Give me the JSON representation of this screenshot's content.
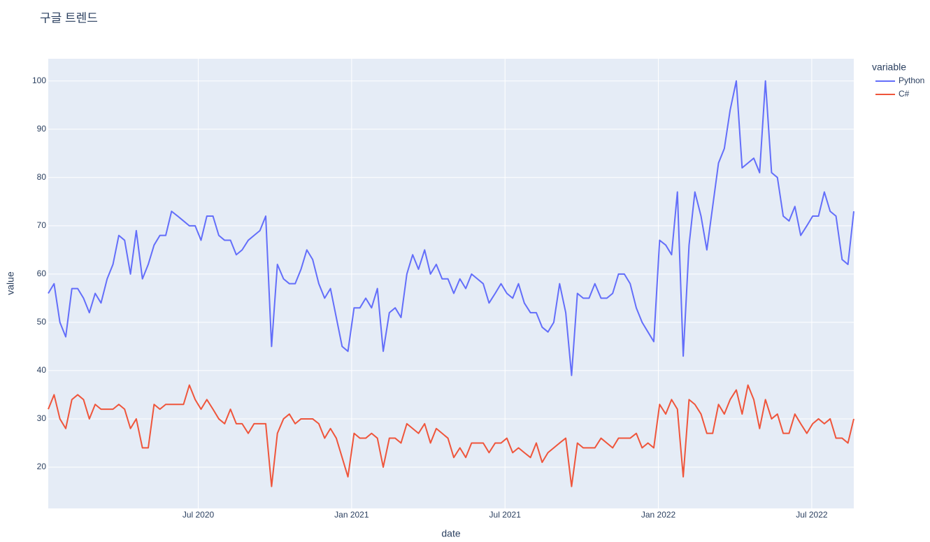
{
  "chart_data": {
    "type": "line",
    "title": "구글 트렌드",
    "xlabel": "date",
    "ylabel": "value",
    "legend_title": "variable",
    "legend": "right",
    "grid": true,
    "background": "#e5ecf6",
    "x": [
      2020.011,
      2020.03,
      2020.049,
      2020.068,
      2020.088,
      2020.107,
      2020.126,
      2020.145,
      2020.164,
      2020.183,
      2020.203,
      2020.222,
      2020.241,
      2020.26,
      2020.279,
      2020.298,
      2020.318,
      2020.337,
      2020.356,
      2020.375,
      2020.394,
      2020.413,
      2020.433,
      2020.452,
      2020.471,
      2020.49,
      2020.509,
      2020.528,
      2020.548,
      2020.567,
      2020.586,
      2020.605,
      2020.624,
      2020.643,
      2020.663,
      2020.682,
      2020.701,
      2020.72,
      2020.739,
      2020.758,
      2020.778,
      2020.797,
      2020.816,
      2020.835,
      2020.854,
      2020.873,
      2020.893,
      2020.912,
      2020.931,
      2020.95,
      2020.969,
      2020.988,
      2021.008,
      2021.027,
      2021.046,
      2021.065,
      2021.084,
      2021.103,
      2021.123,
      2021.142,
      2021.161,
      2021.18,
      2021.199,
      2021.218,
      2021.238,
      2021.257,
      2021.276,
      2021.295,
      2021.314,
      2021.333,
      2021.353,
      2021.372,
      2021.391,
      2021.41,
      2021.429,
      2021.448,
      2021.468,
      2021.487,
      2021.506,
      2021.525,
      2021.544,
      2021.563,
      2021.583,
      2021.602,
      2021.621,
      2021.64,
      2021.659,
      2021.678,
      2021.698,
      2021.717,
      2021.736,
      2021.755,
      2021.774,
      2021.793,
      2021.813,
      2021.832,
      2021.851,
      2021.87,
      2021.889,
      2021.908,
      2021.928,
      2021.947,
      2021.966,
      2021.985,
      2022.004,
      2022.024,
      2022.043,
      2022.062,
      2022.081,
      2022.1,
      2022.119,
      2022.139,
      2022.158,
      2022.177,
      2022.196,
      2022.215,
      2022.234,
      2022.254,
      2022.273,
      2022.292,
      2022.311,
      2022.33,
      2022.349,
      2022.369,
      2022.388,
      2022.407,
      2022.426,
      2022.445,
      2022.464,
      2022.484,
      2022.503,
      2022.522,
      2022.541,
      2022.56,
      2022.579,
      2022.599,
      2022.618,
      2022.637
    ],
    "series": [
      {
        "name": "Python",
        "color": "#636efa",
        "values": [
          56,
          58,
          50,
          47,
          57,
          57,
          55,
          52,
          56,
          54,
          59,
          62,
          68,
          67,
          60,
          69,
          59,
          62,
          66,
          68,
          68,
          73,
          72,
          71,
          70,
          70,
          67,
          72,
          72,
          68,
          67,
          67,
          64,
          65,
          67,
          68,
          69,
          72,
          45,
          62,
          59,
          58,
          58,
          61,
          65,
          63,
          58,
          55,
          57,
          51,
          45,
          44,
          53,
          53,
          55,
          53,
          57,
          44,
          52,
          53,
          51,
          60,
          64,
          61,
          65,
          60,
          62,
          59,
          59,
          56,
          59,
          57,
          60,
          59,
          58,
          54,
          56,
          58,
          56,
          55,
          58,
          54,
          52,
          52,
          49,
          48,
          50,
          58,
          52,
          39,
          56,
          55,
          55,
          58,
          55,
          55,
          56,
          60,
          60,
          58,
          53,
          50,
          48,
          46,
          67,
          66,
          64,
          77,
          43,
          66,
          77,
          72,
          65,
          74,
          83,
          86,
          94,
          100,
          82,
          83,
          84,
          81,
          100,
          81,
          80,
          72,
          71,
          74,
          68,
          70,
          72,
          72,
          77,
          73,
          72,
          63,
          62,
          73
        ]
      },
      {
        "name": "C#",
        "color": "#ef553b",
        "values": [
          32,
          35,
          30,
          28,
          34,
          35,
          34,
          30,
          33,
          32,
          32,
          32,
          33,
          32,
          28,
          30,
          24,
          24,
          33,
          32,
          33,
          33,
          33,
          33,
          37,
          34,
          32,
          34,
          32,
          30,
          29,
          32,
          29,
          29,
          27,
          29,
          29,
          29,
          16,
          27,
          30,
          31,
          29,
          30,
          30,
          30,
          29,
          26,
          28,
          26,
          22,
          18,
          27,
          26,
          26,
          27,
          26,
          20,
          26,
          26,
          25,
          29,
          28,
          27,
          29,
          25,
          28,
          27,
          26,
          22,
          24,
          22,
          25,
          25,
          25,
          23,
          25,
          25,
          26,
          23,
          24,
          23,
          22,
          25,
          21,
          23,
          24,
          25,
          26,
          16,
          25,
          24,
          24,
          24,
          26,
          25,
          24,
          26,
          26,
          26,
          27,
          24,
          25,
          24,
          33,
          31,
          34,
          32,
          18,
          34,
          33,
          31,
          27,
          27,
          33,
          31,
          34,
          36,
          31,
          37,
          34,
          28,
          34,
          30,
          31,
          27,
          27,
          31,
          29,
          27,
          29,
          30,
          29,
          30,
          26,
          26,
          25,
          30
        ]
      }
    ],
    "xlim": [
      2020.011,
      2022.637
    ],
    "xticks": [
      {
        "value": 2020.5,
        "label": "Jul 2020"
      },
      {
        "value": 2021.0,
        "label": "Jan 2021"
      },
      {
        "value": 2021.5,
        "label": "Jul 2021"
      },
      {
        "value": 2022.0,
        "label": "Jan 2022"
      },
      {
        "value": 2022.5,
        "label": "Jul 2022"
      }
    ],
    "ylim": [
      11.45,
      104.6
    ],
    "yticks": [
      20,
      30,
      40,
      50,
      60,
      70,
      80,
      90,
      100
    ]
  }
}
